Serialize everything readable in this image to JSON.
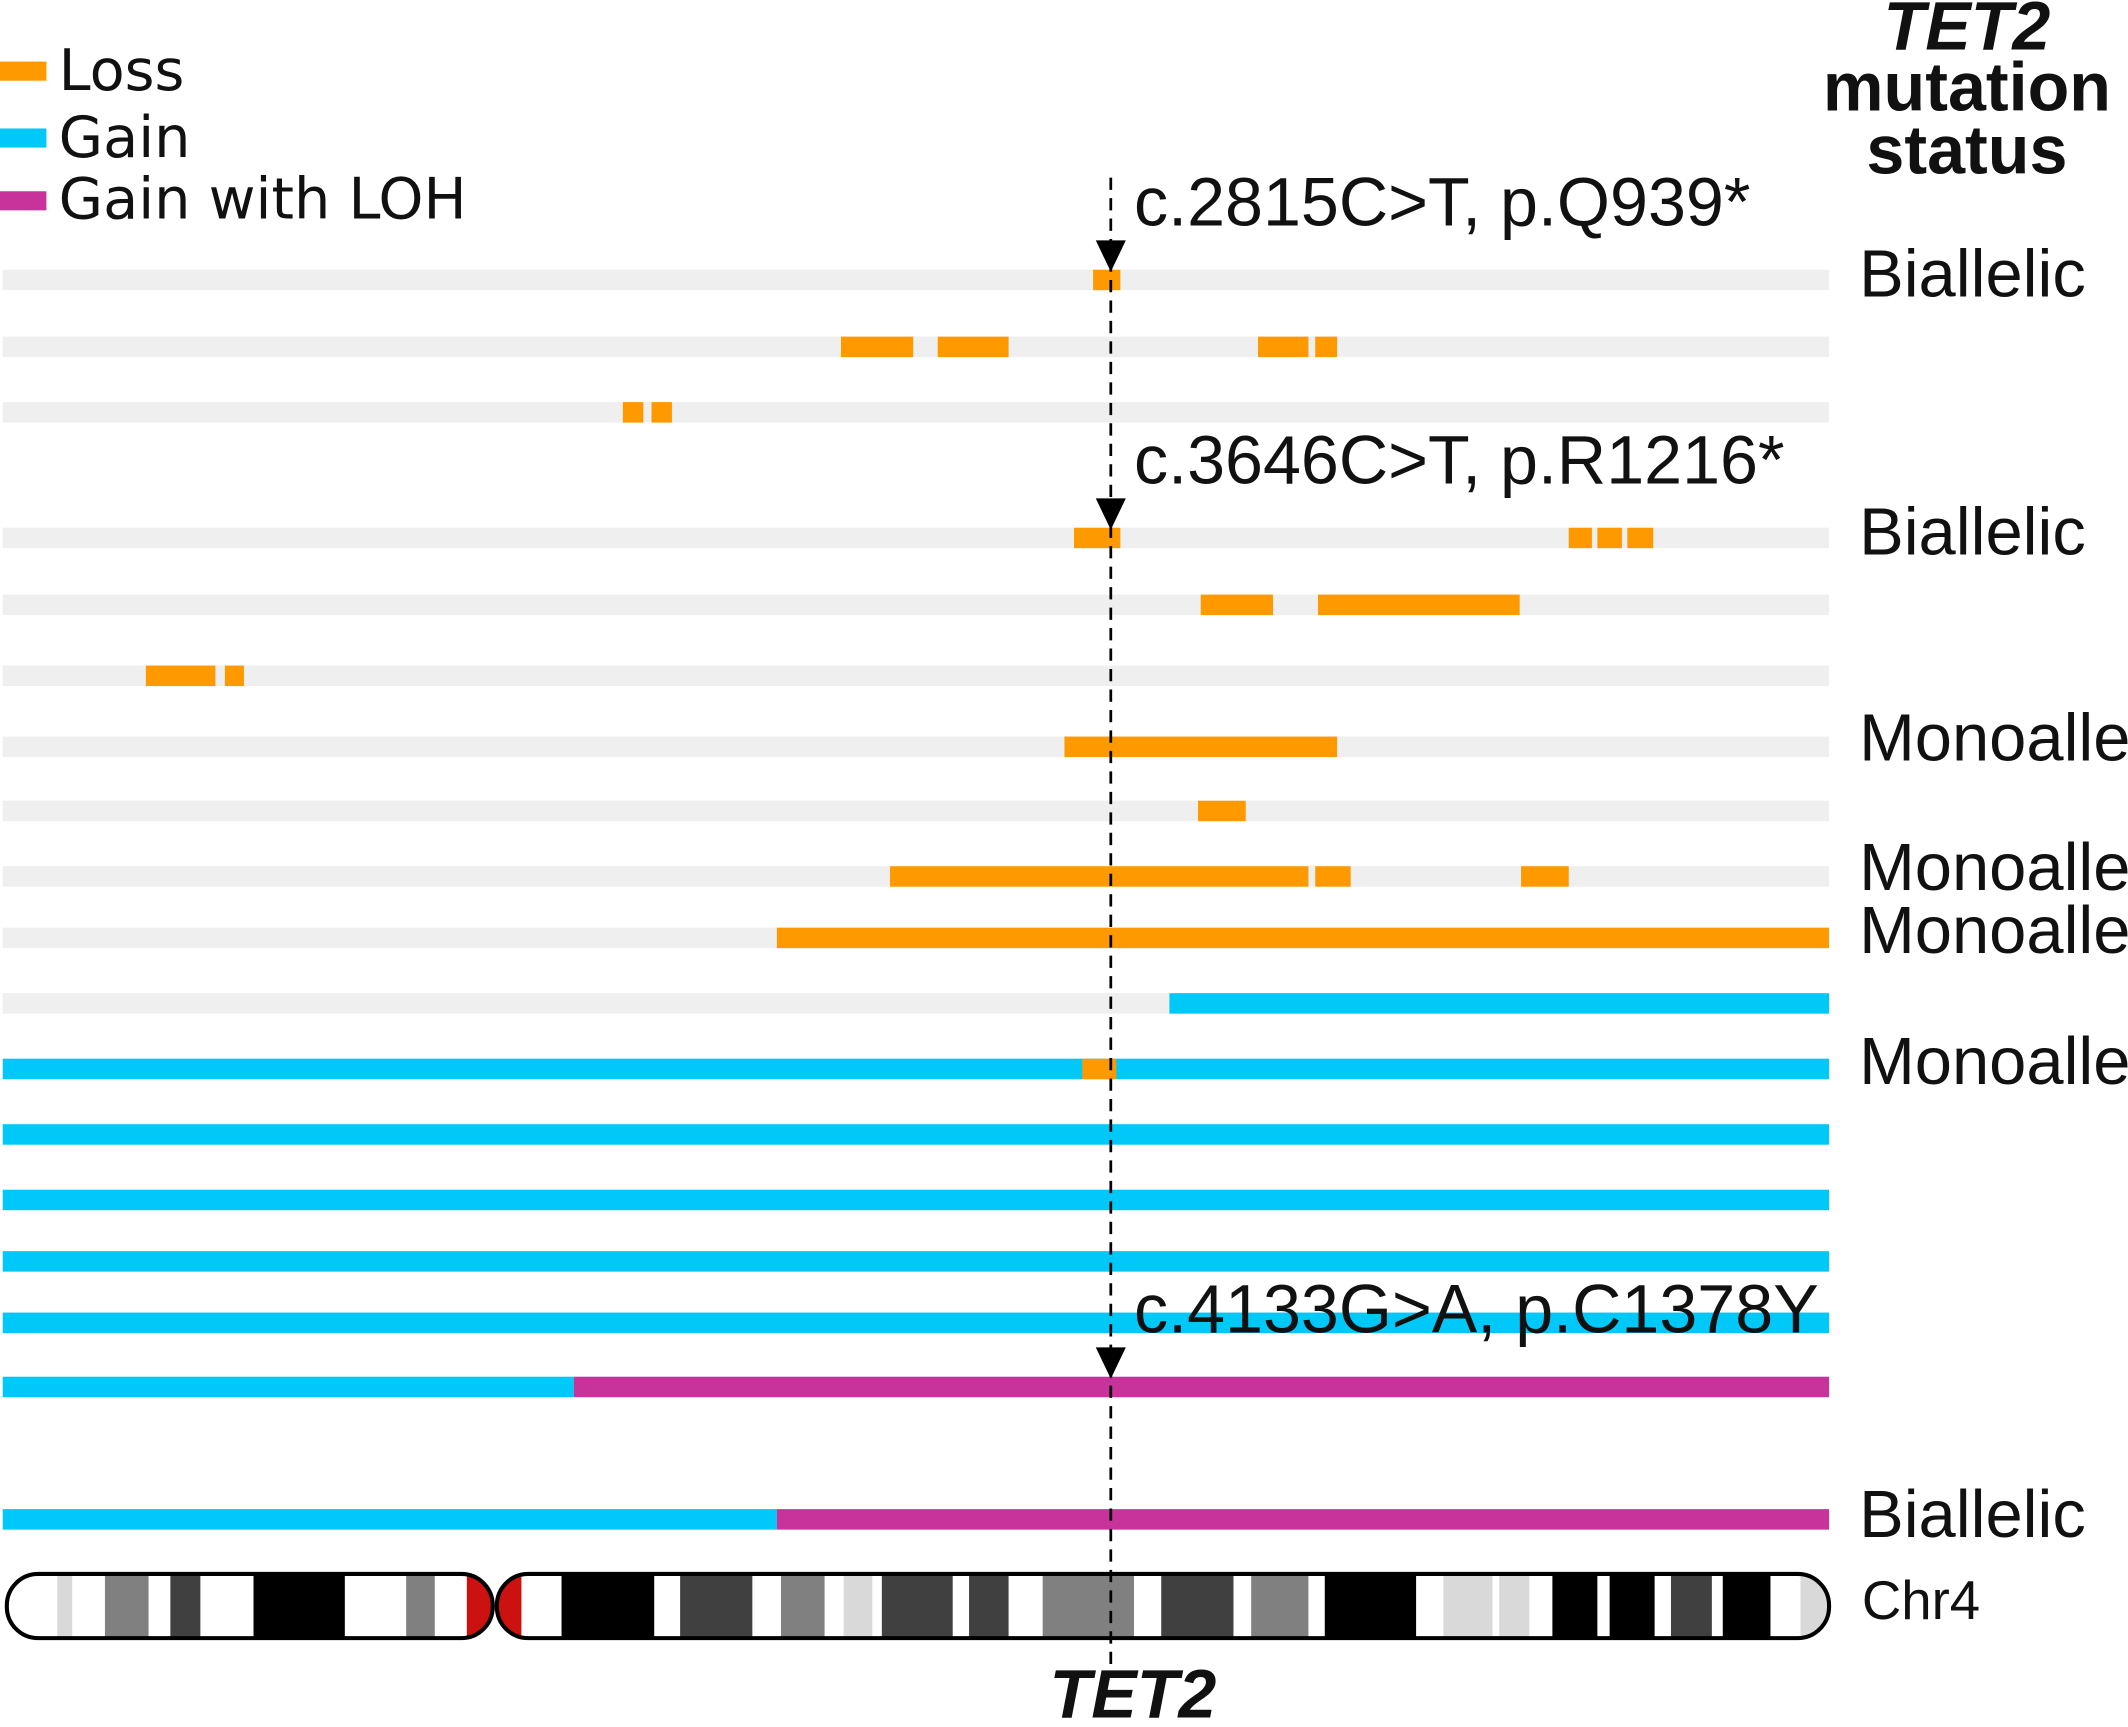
{
  "colors": {
    "loss": "#ff9900",
    "gain": "#00c8f8",
    "gain_loh": "#c8339b",
    "track": "#efefef",
    "centromere": "#cc1111"
  },
  "legend": [
    {
      "label": "Loss",
      "type": "loss"
    },
    {
      "label": "Gain",
      "type": "gain"
    },
    {
      "label": "Gain with LOH",
      "type": "gain_loh"
    }
  ],
  "header": {
    "gene": "TET2",
    "line2": "mutation",
    "line3": "status"
  },
  "mutations": [
    {
      "label": "c.2815C>T, p.Q939*",
      "row": 0
    },
    {
      "label": "c.3646C>T, p.R1216*",
      "row": 3
    },
    {
      "label": "c.4133G>A, p.C1378Y",
      "row": 16
    }
  ],
  "rows": [
    {
      "status": "Biallelic",
      "segments": [
        {
          "type": "loss",
          "start": 800,
          "end": 820
        }
      ]
    },
    {
      "status": "",
      "segments": [
        {
          "type": "loss",
          "start": 615,
          "end": 668
        },
        {
          "type": "loss",
          "start": 686,
          "end": 738
        },
        {
          "type": "loss",
          "start": 921,
          "end": 958
        },
        {
          "type": "loss",
          "start": 963,
          "end": 979
        }
      ]
    },
    {
      "status": "",
      "segments": [
        {
          "type": "loss",
          "start": 455,
          "end": 470
        },
        {
          "type": "loss",
          "start": 476,
          "end": 491
        }
      ]
    },
    {
      "status": "Biallelic",
      "segments": [
        {
          "type": "loss",
          "start": 786,
          "end": 820
        },
        {
          "type": "loss",
          "start": 1149,
          "end": 1166
        },
        {
          "type": "loss",
          "start": 1170,
          "end": 1188
        },
        {
          "type": "loss",
          "start": 1192,
          "end": 1211
        }
      ]
    },
    {
      "status": "",
      "segments": [
        {
          "type": "loss",
          "start": 879,
          "end": 932
        },
        {
          "type": "loss",
          "start": 965,
          "end": 1113
        }
      ]
    },
    {
      "status": "",
      "segments": [
        {
          "type": "loss",
          "start": 105,
          "end": 156
        },
        {
          "type": "loss",
          "start": 163,
          "end": 177
        }
      ]
    },
    {
      "status": "Monoallelic",
      "segments": [
        {
          "type": "loss",
          "start": 779,
          "end": 979
        }
      ]
    },
    {
      "status": "",
      "segments": [
        {
          "type": "loss",
          "start": 877,
          "end": 912
        }
      ]
    },
    {
      "status": "Monoallelic",
      "segments": [
        {
          "type": "loss",
          "start": 651,
          "end": 958
        },
        {
          "type": "loss",
          "start": 963,
          "end": 989
        },
        {
          "type": "loss",
          "start": 1114,
          "end": 1149
        }
      ]
    },
    {
      "status": "Monoallelic",
      "segments": [
        {
          "type": "loss",
          "start": 568,
          "end": 1340
        }
      ]
    },
    {
      "status": "",
      "segments": [
        {
          "type": "gain",
          "start": 856,
          "end": 1340
        }
      ]
    },
    {
      "status": "Monoallelic",
      "segments": [
        {
          "type": "gain",
          "start": 0,
          "end": 1340
        },
        {
          "type": "loss",
          "start": 792,
          "end": 817
        }
      ]
    },
    {
      "status": "",
      "segments": [
        {
          "type": "gain",
          "start": 0,
          "end": 1340
        }
      ]
    },
    {
      "status": "",
      "segments": [
        {
          "type": "gain",
          "start": 0,
          "end": 1340
        }
      ]
    },
    {
      "status": "",
      "segments": [
        {
          "type": "gain",
          "start": 0,
          "end": 1340
        }
      ]
    },
    {
      "status": "",
      "segments": [
        {
          "type": "gain",
          "start": 0,
          "end": 1340
        }
      ]
    },
    {
      "status": "",
      "segments": [
        {
          "type": "gain",
          "start": 0,
          "end": 419
        },
        {
          "type": "gain_loh",
          "start": 419,
          "end": 1340
        }
      ]
    },
    {
      "status": "Biallelic",
      "segments": [
        {
          "type": "gain",
          "start": 0,
          "end": 568
        },
        {
          "type": "gain_loh",
          "start": 568,
          "end": 1340
        }
      ]
    }
  ],
  "gene_position": 813,
  "chromosome": {
    "label": "Chr4",
    "centromere": 360,
    "bands": [
      {
        "start": 40,
        "end": 51,
        "shade": "#d9d9d9"
      },
      {
        "start": 75,
        "end": 107,
        "shade": "#808080"
      },
      {
        "start": 123,
        "end": 145,
        "shade": "#404040"
      },
      {
        "start": 184,
        "end": 251,
        "shade": "#000000"
      },
      {
        "start": 296,
        "end": 317,
        "shade": "#808080"
      },
      {
        "start": 410,
        "end": 478,
        "shade": "#000000"
      },
      {
        "start": 497,
        "end": 550,
        "shade": "#404040"
      },
      {
        "start": 571,
        "end": 603,
        "shade": "#808080"
      },
      {
        "start": 617,
        "end": 638,
        "shade": "#d9d9d9"
      },
      {
        "start": 645,
        "end": 697,
        "shade": "#404040"
      },
      {
        "start": 709,
        "end": 738,
        "shade": "#404040"
      },
      {
        "start": 763,
        "end": 830,
        "shade": "#808080"
      },
      {
        "start": 850,
        "end": 903,
        "shade": "#404040"
      },
      {
        "start": 916,
        "end": 958,
        "shade": "#808080"
      },
      {
        "start": 970,
        "end": 1037,
        "shade": "#000000"
      },
      {
        "start": 1057,
        "end": 1093,
        "shade": "#d9d9d9"
      },
      {
        "start": 1098,
        "end": 1120,
        "shade": "#d9d9d9"
      },
      {
        "start": 1137,
        "end": 1170,
        "shade": "#000000"
      },
      {
        "start": 1179,
        "end": 1212,
        "shade": "#000000"
      },
      {
        "start": 1224,
        "end": 1254,
        "shade": "#404040"
      },
      {
        "start": 1262,
        "end": 1297,
        "shade": "#000000"
      },
      {
        "start": 1319,
        "end": 1340,
        "shade": "#d9d9d9"
      }
    ]
  },
  "gene_label": "TET2"
}
